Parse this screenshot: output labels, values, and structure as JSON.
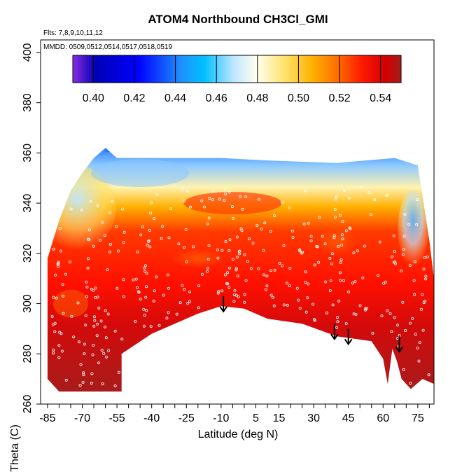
{
  "chart_data": {
    "type": "heatmap",
    "title": "ATOM4 Northbound CH3Cl_GMI",
    "flights_note": "Flts: 7,8,9,10,11,12",
    "dates_note": "MMDD: 0509,0512,0514,0517,0518,0519",
    "xlabel": "Latitude (deg N)",
    "ylabel": "Theta (C)",
    "xlim": [
      -88,
      82
    ],
    "ylim": [
      260,
      405
    ],
    "x_ticks": [
      -85,
      -70,
      -55,
      -40,
      -25,
      -10,
      5,
      15,
      30,
      45,
      60,
      75
    ],
    "y_ticks": [
      260,
      280,
      300,
      320,
      340,
      360,
      380,
      400
    ],
    "colorbar": {
      "range": [
        0.39,
        0.55
      ],
      "ticks": [
        "0.40",
        "0.42",
        "0.44",
        "0.46",
        "0.48",
        "0.50",
        "0.52",
        "0.54"
      ],
      "colors": [
        "#8a2be2",
        "#0000b4",
        "#0000ff",
        "#1e90ff",
        "#00bfff",
        "#bfe6ff",
        "#fffff0",
        "#ffe066",
        "#ffb000",
        "#ff6a00",
        "#ff1a00",
        "#d40000",
        "#a61c1c"
      ]
    },
    "tropopause_arrows_lat": [
      -9,
      39,
      45,
      67
    ],
    "upper_boundary": [
      [
        -85,
        318
      ],
      [
        -80,
        333
      ],
      [
        -75,
        345
      ],
      [
        -70,
        352
      ],
      [
        -65,
        358
      ],
      [
        -60,
        362
      ],
      [
        -55,
        358
      ],
      [
        -45,
        358
      ],
      [
        -30,
        358
      ],
      [
        -10,
        358
      ],
      [
        10,
        357
      ],
      [
        40,
        356
      ],
      [
        65,
        358
      ],
      [
        75,
        355
      ],
      [
        80,
        325
      ],
      [
        82,
        310
      ]
    ],
    "lower_boundary": [
      [
        -85,
        270
      ],
      [
        -80,
        265
      ],
      [
        -53,
        265
      ],
      [
        -53,
        280
      ],
      [
        -40,
        288
      ],
      [
        -30,
        292
      ],
      [
        -20,
        296
      ],
      [
        -10,
        299
      ],
      [
        0,
        298
      ],
      [
        10,
        294
      ],
      [
        25,
        292
      ],
      [
        40,
        287
      ],
      [
        55,
        285
      ],
      [
        60,
        278
      ],
      [
        62,
        268
      ],
      [
        64,
        282
      ],
      [
        66,
        277
      ],
      [
        68,
        270
      ],
      [
        72,
        266
      ],
      [
        77,
        270
      ],
      [
        82,
        268
      ]
    ],
    "field_description_levels": [
      {
        "theta": 355,
        "value": 0.44
      },
      {
        "theta": 345,
        "value": 0.47
      },
      {
        "theta": 330,
        "value": 0.51
      },
      {
        "theta": 315,
        "value": 0.525
      },
      {
        "theta": 300,
        "value": 0.535
      },
      {
        "theta": 285,
        "value": 0.545
      }
    ]
  }
}
